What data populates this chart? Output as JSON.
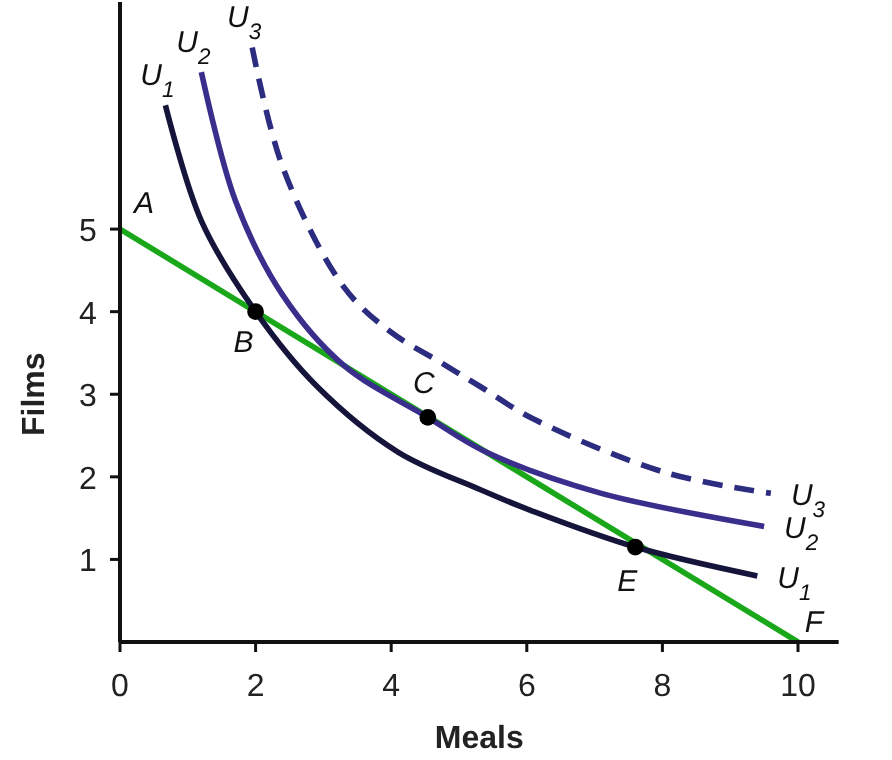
{
  "chart_data": {
    "type": "line",
    "xlabel": "Meals",
    "ylabel": "Films",
    "xlim": [
      0,
      10.6
    ],
    "ylim": [
      0,
      7.75
    ],
    "xticks": [
      0,
      2,
      4,
      6,
      8,
      10
    ],
    "yticks": [
      1,
      2,
      3,
      4,
      5
    ],
    "grid": false,
    "marker": "none",
    "series": [
      {
        "color": "#1aa81a",
        "x": [
          0,
          10
        ],
        "values": [
          5,
          0
        ]
      },
      {
        "name": "U$_{1}$",
        "color": "#15153c",
        "line_style": "solid",
        "x": [
          0.67,
          1.2,
          2,
          2.9,
          4.1,
          5.3,
          6.1,
          7.6,
          9.4
        ],
        "values": [
          6.5,
          5.1,
          4,
          3.1,
          2.3,
          1.85,
          1.58,
          1.15,
          0.8
        ]
      },
      {
        "name": "U$_{2}$",
        "color": "#3a2e8c",
        "line_style": "solid",
        "x": [
          1.2,
          1.7,
          2.4,
          3.3,
          4.54,
          5.4,
          7.1,
          9.5
        ],
        "values": [
          6.9,
          5.35,
          4.2,
          3.35,
          2.72,
          2.3,
          1.8,
          1.4
        ]
      },
      {
        "name": "U$_{3}$",
        "color": "#2c2c80",
        "line_style": "dashed",
        "x": [
          1.95,
          2.4,
          3.3,
          4,
          4.7,
          5.3,
          6.1,
          8.05,
          9.6
        ],
        "values": [
          7.2,
          5.75,
          4.3,
          3.75,
          3.4,
          3.1,
          2.7,
          2.05,
          1.8
        ]
      },
      {
        "type": "scatter",
        "marker": "circle",
        "color": "#000000",
        "x": [
          2,
          4.54,
          7.6
        ],
        "values": [
          4,
          2.72,
          1.15
        ]
      }
    ],
    "annotations": [
      {
        "text": "A",
        "x": 0,
        "y": 5
      },
      {
        "text": "B",
        "x": 2,
        "y": 4
      },
      {
        "text": "C",
        "x": 4.54,
        "y": 2.72
      },
      {
        "text": "E",
        "x": 7.6,
        "y": 1.15
      },
      {
        "text": "F",
        "x": 10,
        "y": 0
      }
    ]
  }
}
